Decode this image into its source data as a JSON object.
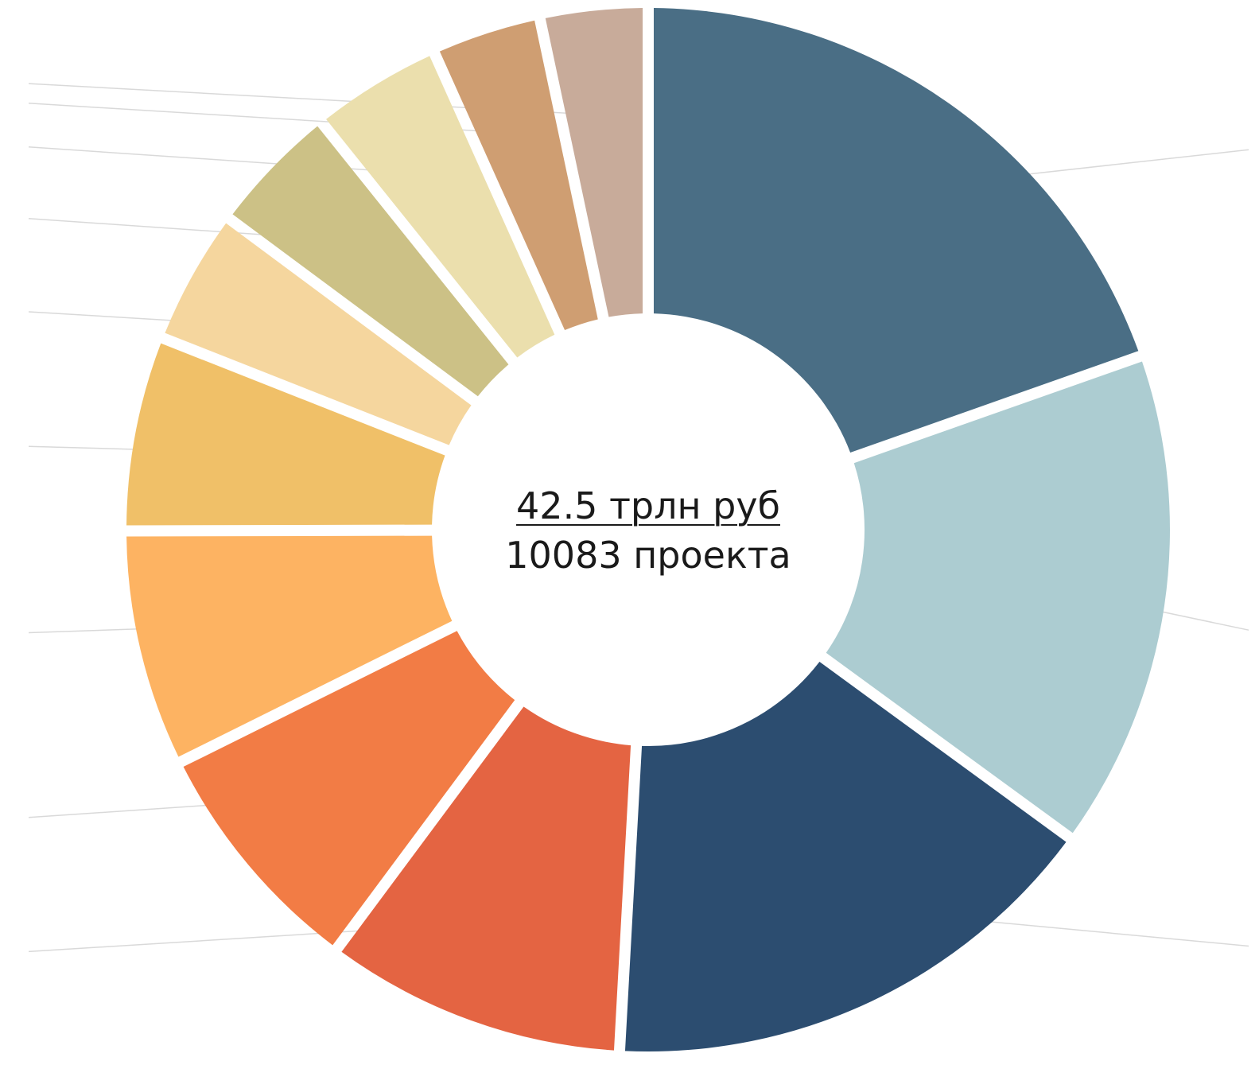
{
  "chart_data": {
    "type": "pie",
    "variant": "donut",
    "center": {
      "total_label": "42.5 трлн руб",
      "count_label": "10083 проекта"
    },
    "unit": "share of total",
    "slices": [
      {
        "value": 0.1928,
        "color": "#4a6e85"
      },
      {
        "value": 0.1518,
        "color": "#acccd1"
      },
      {
        "value": 0.1557,
        "color": "#2c4d70"
      },
      {
        "value": 0.0914,
        "color": "#e46442"
      },
      {
        "value": 0.0737,
        "color": "#f27c45"
      },
      {
        "value": 0.0718,
        "color": "#fdb362"
      },
      {
        "value": 0.0592,
        "color": "#f0c068"
      },
      {
        "value": 0.0411,
        "color": "#f5d69e"
      },
      {
        "value": 0.0401,
        "color": "#ccc186"
      },
      {
        "value": 0.0398,
        "color": "#ebdfad"
      },
      {
        "value": 0.0333,
        "color": "#cf9e72"
      },
      {
        "value": 0.0327,
        "color": "#c8ab9a"
      }
    ],
    "legend": "none",
    "leader_line_color": "#d9d9d9"
  }
}
